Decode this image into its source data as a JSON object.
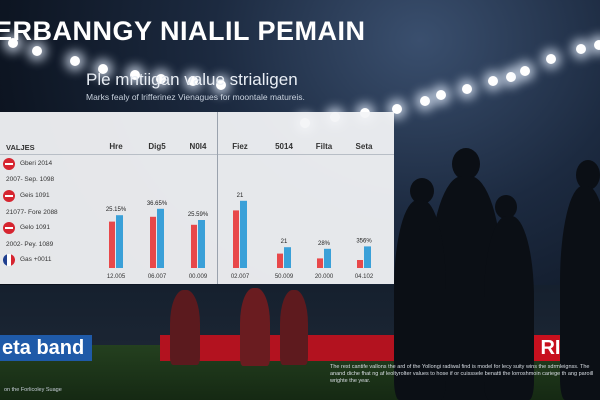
{
  "header": {
    "title": "ERBANNGY NIALIL PEMAIN",
    "subtitle": "Ple mntiigan value strialigen",
    "caption": "Marks fealy of lrifferinez Vienagues for moontale matureis."
  },
  "table": {
    "corner_label": "VALJES",
    "columns": [
      "Hre",
      "Dig5",
      "N0I4",
      "Fiez",
      "5014",
      "Filta",
      "Seta"
    ],
    "rows": [
      {
        "label": "Gberi 2014",
        "flag": "red"
      },
      {
        "label": "2007- Sep. 1098",
        "flag": ""
      },
      {
        "label": "Geis 1091",
        "flag": "red"
      },
      {
        "label": "21077- Fore 2088",
        "flag": ""
      },
      {
        "label": "Gelo 1091",
        "flag": "red"
      },
      {
        "label": "2002- Pey. 1089",
        "flag": ""
      },
      {
        "label": "Gas +0011",
        "flag": "fr"
      }
    ]
  },
  "chart_data": {
    "type": "bar",
    "groups": [
      {
        "value_label": "25.15%",
        "tick": "12.005",
        "a": 0.58,
        "b": 0.66
      },
      {
        "value_label": "36.65%",
        "tick": "06.007",
        "a": 0.64,
        "b": 0.74
      },
      {
        "value_label": "25.59%",
        "tick": "00.009",
        "a": 0.54,
        "b": 0.6
      },
      {
        "value_label": "21",
        "tick": "02.007",
        "a": 0.72,
        "b": 0.84
      },
      {
        "value_label": "21",
        "tick": "50.009",
        "a": 0.18,
        "b": 0.26
      },
      {
        "value_label": "28%",
        "tick": "20.000",
        "a": 0.12,
        "b": 0.24
      },
      {
        "value_label": "356%",
        "tick": "04.102",
        "a": 0.1,
        "b": 0.27
      }
    ],
    "colors": {
      "a": "#e8484a",
      "b": "#3aa0d8"
    }
  },
  "boards": {
    "left": "eta band",
    "right": "RIET"
  },
  "footer": {
    "note": "The rest cantife vallons the ard of the Yollongi radiwal find is model for lecy suity wins the sdrmleignss. The anand diche fhat ng af leoltyrolter values to hose if or cuisssele benatti the lorroshmoin cariege th ang paroill wrighte the year.",
    "credit": "on the Forlicoley Suage"
  }
}
